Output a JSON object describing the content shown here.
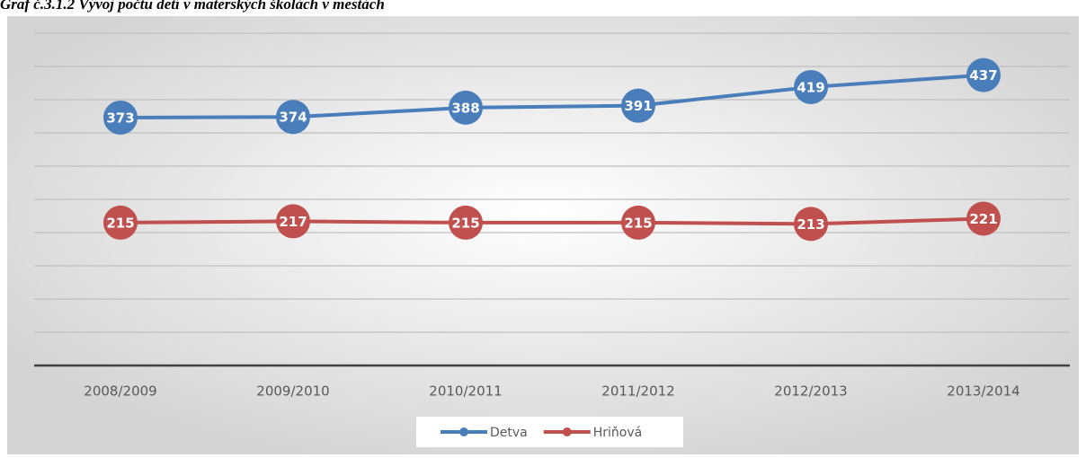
{
  "chart_data": {
    "type": "line",
    "title": "Graf č.3.1.2 Vývoj počtu detí v materských školách v mestách",
    "categories": [
      "2008/2009",
      "2009/2010",
      "2010/2011",
      "2011/2012",
      "2012/2013",
      "2013/2014"
    ],
    "series": [
      {
        "name": "Detva",
        "color": "#4a7ebb",
        "values": [
          373,
          374,
          388,
          391,
          419,
          437
        ]
      },
      {
        "name": "Hriňová",
        "color": "#c0504d",
        "values": [
          215,
          217,
          215,
          215,
          213,
          221
        ]
      }
    ],
    "ylim": [
      0,
      500
    ],
    "yticks": [
      0,
      50,
      100,
      150,
      200,
      250,
      300,
      350,
      400,
      450,
      500
    ],
    "grid": true,
    "legend": "bottom"
  }
}
